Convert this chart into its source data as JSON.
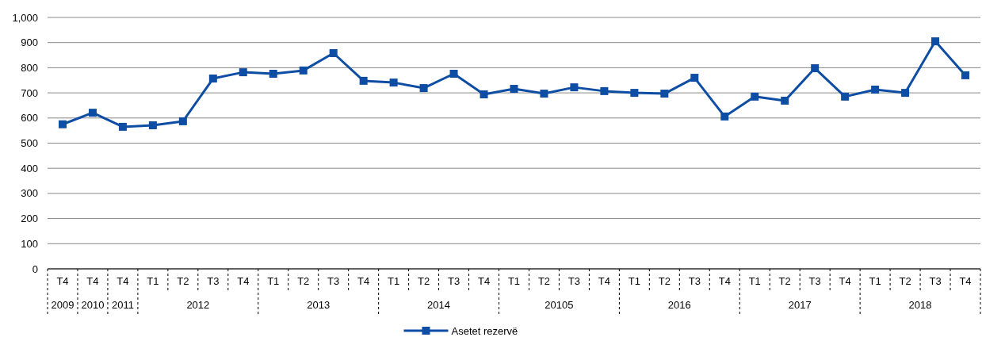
{
  "chart_data": {
    "type": "line",
    "categories": [
      "T4",
      "T4",
      "T4",
      "T1",
      "T2",
      "T3",
      "T4",
      "T1",
      "T2",
      "T3",
      "T4",
      "T1",
      "T2",
      "T3",
      "T4",
      "T1",
      "T2",
      "T3",
      "T4",
      "T1",
      "T2",
      "T3",
      "T4",
      "T1",
      "T2",
      "T3",
      "T4",
      "T1",
      "T2",
      "T3",
      "T4"
    ],
    "series": [
      {
        "name": "Asetet rezervë",
        "color": "#0e4da4",
        "values": [
          575,
          621,
          565,
          571,
          587,
          757,
          782,
          776,
          789,
          858,
          748,
          741,
          719,
          776,
          694,
          716,
          697,
          722,
          707,
          700,
          697,
          760,
          606,
          685,
          669,
          798,
          685,
          713,
          700,
          905,
          770
        ]
      }
    ],
    "annotations": [
      "2009",
      "2010",
      "2011",
      "2012",
      "2013",
      "2014",
      "20105",
      "2016",
      "2017",
      "2018"
    ],
    "ylim": [
      0,
      1000
    ],
    "yticks": [
      0,
      {
        "value": 100,
        "label": "100"
      },
      {
        "value": 200,
        "label": "200"
      },
      {
        "value": 300,
        "label": "300"
      },
      {
        "value": 400,
        "label": "400"
      },
      {
        "value": 500,
        "label": "500"
      },
      {
        "value": 600,
        "label": "600"
      },
      {
        "value": 700,
        "label": "700"
      },
      {
        "value": 800,
        "label": "800"
      },
      {
        "value": 900,
        "label": "900"
      },
      {
        "value": 1000,
        "label": "1,000"
      }
    ],
    "grid": "y",
    "legend": "bottom",
    "marker": "square",
    "line_style": "solid"
  }
}
